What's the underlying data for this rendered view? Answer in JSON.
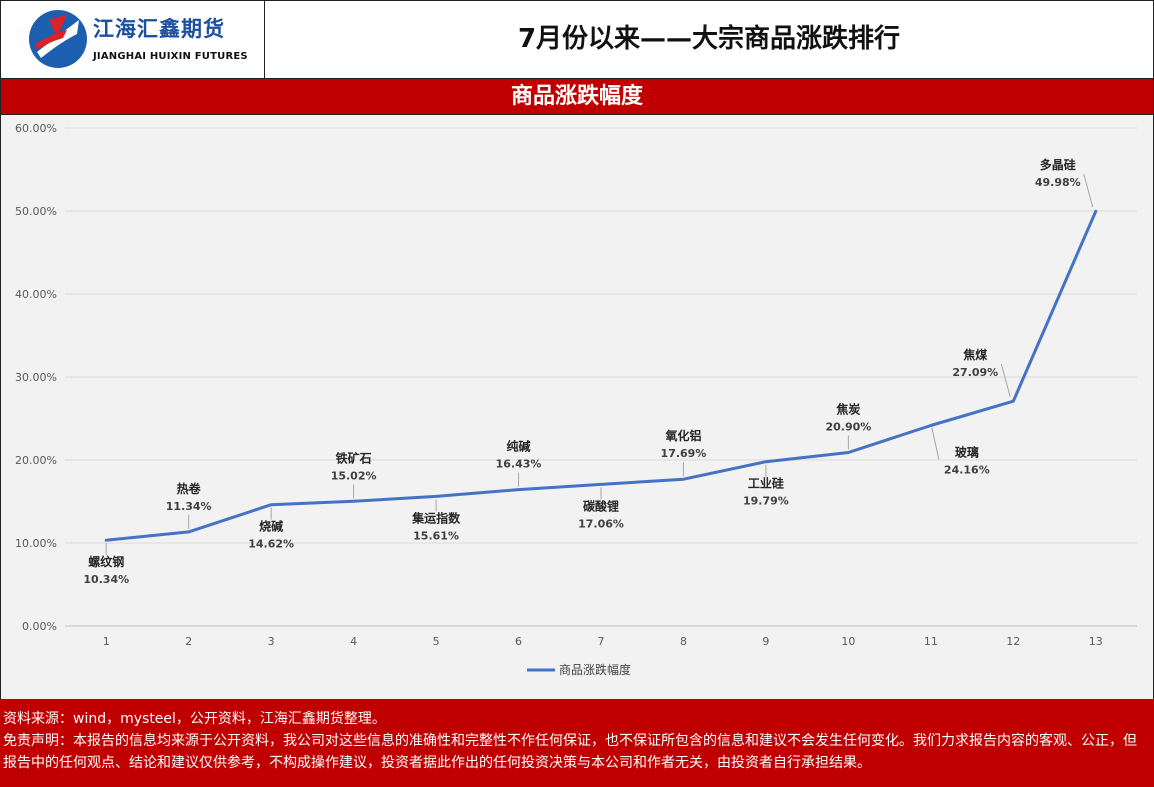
{
  "header": {
    "logo_cn": "江海汇鑫期货",
    "logo_en": "JIANGHAI HUIXIN FUTURES",
    "title": "7月份以来——大宗商品涨跌排行"
  },
  "chart_band": {
    "title": "商品涨跌幅度"
  },
  "chart_data": {
    "type": "line",
    "title": "商品涨跌幅度",
    "xlabel": "",
    "ylabel": "",
    "x": [
      1,
      2,
      3,
      4,
      5,
      6,
      7,
      8,
      9,
      10,
      11,
      12,
      13
    ],
    "x_tick_labels": [
      "1",
      "2",
      "3",
      "4",
      "5",
      "6",
      "7",
      "8",
      "9",
      "10",
      "11",
      "12",
      "13"
    ],
    "y_tick_labels": [
      "0.00%",
      "10.00%",
      "20.00%",
      "30.00%",
      "40.00%",
      "50.00%",
      "60.00%"
    ],
    "ylim": [
      0,
      60
    ],
    "grid": true,
    "legend_position": "bottom",
    "series": [
      {
        "name": "商品涨跌幅度",
        "color": "#4472c4",
        "values": [
          10.34,
          11.34,
          14.62,
          15.02,
          15.61,
          16.43,
          17.06,
          17.69,
          19.79,
          20.9,
          24.16,
          27.09,
          49.98
        ],
        "names": [
          "螺纹钢",
          "热卷",
          "烧碱",
          "铁矿石",
          "集运指数",
          "纯碱",
          "碳酸锂",
          "氧化铝",
          "工业硅",
          "焦炭",
          "玻璃",
          "焦煤",
          "多晶硅"
        ],
        "value_labels": [
          "10.34%",
          "11.34%",
          "14.62%",
          "15.02%",
          "15.61%",
          "16.43%",
          "17.06%",
          "17.69%",
          "19.79%",
          "20.90%",
          "24.16%",
          "27.09%",
          "49.98%"
        ]
      }
    ]
  },
  "footer": {
    "source": "资料来源：wind，mysteel，公开资料，江海汇鑫期货整理。",
    "disclaimer": "免责声明：本报告的信息均来源于公开资料，我公司对这些信息的准确性和完整性不作任何保证，也不保证所包含的信息和建议不会发生任何变化。我们力求报告内容的客观、公正，但报告中的任何观点、结论和建议仅供参考，不构成操作建议，投资者据此作出的任何投资决策与本公司和作者无关，由投资者自行承担结果。"
  }
}
